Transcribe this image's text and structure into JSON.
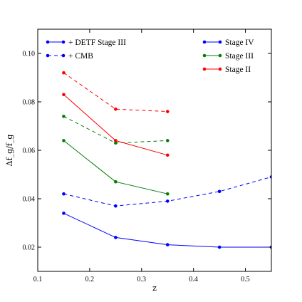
{
  "chart_data": {
    "type": "line",
    "xlabel": "z",
    "ylabel": "Δf_g/f_g",
    "xlim": [
      0.1,
      0.55
    ],
    "ylim": [
      0.01,
      0.11
    ],
    "xticks": [
      0.1,
      0.2,
      0.3,
      0.4,
      0.5
    ],
    "yticks": [
      0.02,
      0.04,
      0.06,
      0.08,
      0.1
    ],
    "xtick_labels": [
      "0.1",
      "0.2",
      "0.3",
      "0.4",
      "0.5"
    ],
    "ytick_labels": [
      "0.02",
      "0.04",
      "0.06",
      "0.08",
      "0.10"
    ],
    "grid": false,
    "legend_style": {
      "position": "upper-left",
      "entries": [
        {
          "label": "+ DETF Stage III",
          "color": "#0000ff",
          "dashed": false
        },
        {
          "label": "+ CMB",
          "color": "#0000ff",
          "dashed": true
        }
      ]
    },
    "legend_survey": {
      "position": "upper-right",
      "entries": [
        {
          "label": "Stage IV",
          "color": "#0000ff"
        },
        {
          "label": "Stage III",
          "color": "#008000"
        },
        {
          "label": "Stage II",
          "color": "#ff0000"
        }
      ]
    },
    "series": [
      {
        "name": "Stage IV",
        "prior": "+ DETF Stage III",
        "color": "#0000ff",
        "dashed": false,
        "x": [
          0.15,
          0.25,
          0.35,
          0.45,
          0.55
        ],
        "y": [
          0.034,
          0.024,
          0.021,
          0.02,
          0.02
        ]
      },
      {
        "name": "Stage IV",
        "prior": "+ CMB",
        "color": "#0000ff",
        "dashed": true,
        "x": [
          0.15,
          0.25,
          0.35,
          0.45,
          0.55
        ],
        "y": [
          0.042,
          0.037,
          0.039,
          0.043,
          0.049
        ]
      },
      {
        "name": "Stage III",
        "prior": "+ DETF Stage III",
        "color": "#008000",
        "dashed": false,
        "x": [
          0.15,
          0.25,
          0.35
        ],
        "y": [
          0.064,
          0.047,
          0.042
        ]
      },
      {
        "name": "Stage III",
        "prior": "+ CMB",
        "color": "#008000",
        "dashed": true,
        "x": [
          0.15,
          0.25,
          0.35
        ],
        "y": [
          0.074,
          0.063,
          0.064
        ]
      },
      {
        "name": "Stage II",
        "prior": "+ DETF Stage III",
        "color": "#ff0000",
        "dashed": false,
        "x": [
          0.15,
          0.25,
          0.35
        ],
        "y": [
          0.083,
          0.064,
          0.058
        ]
      },
      {
        "name": "Stage II",
        "prior": "+ CMB",
        "color": "#ff0000",
        "dashed": true,
        "x": [
          0.15,
          0.25,
          0.35
        ],
        "y": [
          0.092,
          0.077,
          0.076
        ]
      }
    ]
  }
}
